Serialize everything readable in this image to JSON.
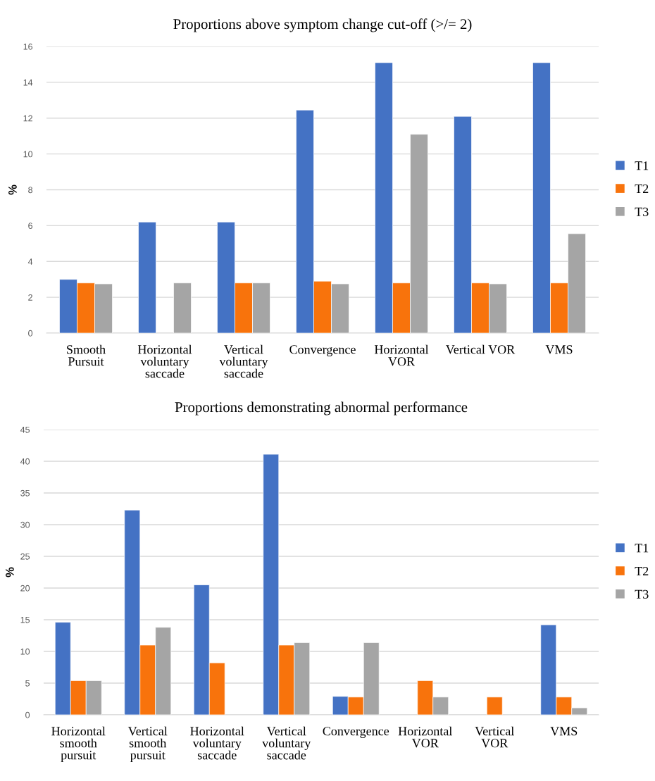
{
  "chart_data": [
    {
      "type": "bar",
      "title": "Proportions above symptom change cut-off (>/= 2)",
      "ylabel": "%",
      "categories": [
        "Smooth\nPursuit",
        "Horizontal\nvoluntary\nsaccade",
        "Vertical\nvoluntary\nsaccade",
        "Convergence",
        "Horizontal\nVOR",
        "Vertical VOR",
        "VMS"
      ],
      "series": [
        {
          "name": "T1",
          "color": "#4472c4",
          "values": [
            3.0,
            6.2,
            6.2,
            12.45,
            15.1,
            12.1,
            15.1
          ]
        },
        {
          "name": "T2",
          "color": "#f8730c",
          "values": [
            2.8,
            null,
            2.8,
            2.9,
            2.8,
            2.8,
            2.8
          ]
        },
        {
          "name": "T3",
          "color": "#a5a5a5",
          "values": [
            2.75,
            2.8,
            2.8,
            2.75,
            11.1,
            2.75,
            5.55
          ]
        }
      ],
      "ylim": [
        0,
        16
      ],
      "yticks": [
        0,
        2,
        4,
        6,
        8,
        10,
        12,
        14,
        16
      ],
      "grid": "y",
      "legend": "right"
    },
    {
      "type": "bar",
      "title": "Proportions demonstrating abnormal performance",
      "ylabel": "%",
      "categories": [
        "Horizontal\nsmooth\npursuit",
        "Vertical\nsmooth\npursuit",
        "Horizontal\nvoluntary\nsaccade",
        "Vertical\nvoluntary\nsaccade",
        "Convergence",
        "Horizontal\nVOR",
        "Vertical\nVOR",
        "VMS"
      ],
      "series": [
        {
          "name": "T1",
          "color": "#4472c4",
          "values": [
            14.6,
            32.3,
            20.5,
            41.1,
            2.9,
            null,
            null,
            14.2
          ]
        },
        {
          "name": "T2",
          "color": "#f8730c",
          "values": [
            5.4,
            11.0,
            8.2,
            11.0,
            2.8,
            5.4,
            2.8,
            2.8
          ]
        },
        {
          "name": "T3",
          "color": "#a5a5a5",
          "values": [
            5.4,
            13.8,
            null,
            11.4,
            11.4,
            2.8,
            null,
            1.1
          ]
        }
      ],
      "ylim": [
        0,
        45
      ],
      "yticks": [
        0,
        5,
        10,
        15,
        20,
        25,
        30,
        35,
        40,
        45
      ],
      "grid": "y",
      "legend": "right"
    }
  ]
}
